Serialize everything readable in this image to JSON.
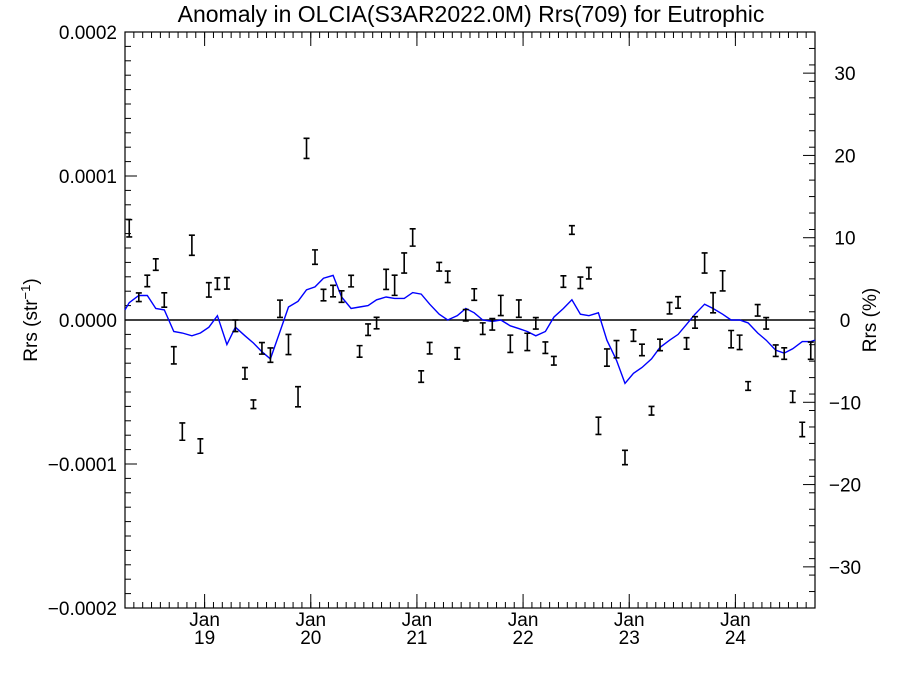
{
  "chart_data": {
    "type": "scatter",
    "title": "Anomaly in OLCIA(S3AR2022.0M) Rrs(709) for Eutrophic",
    "ylabel": "Rrs (str⁻¹)",
    "y2label": "Rrs (%)",
    "xlabel": "",
    "xlim": [
      2018.25,
      2024.75
    ],
    "ylim": [
      -0.0002,
      0.0002
    ],
    "y2lim": [
      -35,
      35
    ],
    "y_ticks": [
      {
        "value": 0.0002,
        "label": "0.0002"
      },
      {
        "value": 0.0001,
        "label": "0.0001"
      },
      {
        "value": 0.0,
        "label": "0.0000"
      },
      {
        "value": -0.0001,
        "label": "−0.0001"
      },
      {
        "value": -0.0002,
        "label": "−0.0002"
      }
    ],
    "y2_ticks": [
      {
        "value": 30,
        "label": "30"
      },
      {
        "value": 20,
        "label": "20"
      },
      {
        "value": 10,
        "label": "10"
      },
      {
        "value": 0,
        "label": "0"
      },
      {
        "value": -10,
        "label": "−10"
      },
      {
        "value": -20,
        "label": "−20"
      },
      {
        "value": -30,
        "label": "−30"
      }
    ],
    "x_ticks": [
      {
        "value": 2019.0,
        "month": "Jan",
        "year": "19"
      },
      {
        "value": 2020.0,
        "month": "Jan",
        "year": "20"
      },
      {
        "value": 2021.0,
        "month": "Jan",
        "year": "21"
      },
      {
        "value": 2022.0,
        "month": "Jan",
        "year": "22"
      },
      {
        "value": 2023.0,
        "month": "Jan",
        "year": "23"
      },
      {
        "value": 2024.0,
        "month": "Jan",
        "year": "24"
      }
    ],
    "grid": false,
    "reference_line": 0,
    "series": [
      {
        "kind": "errorbar",
        "color": "#000000",
        "points": [
          {
            "x": 2018.29,
            "y": 6.37e-05,
            "err": 6e-06
          },
          {
            "x": 2018.38,
            "y": 1.58e-05,
            "err": 3e-06
          },
          {
            "x": 2018.46,
            "y": 2.71e-05,
            "err": 4e-06
          },
          {
            "x": 2018.54,
            "y": 3.85e-05,
            "err": 4e-06
          },
          {
            "x": 2018.62,
            "y": 1.39e-05,
            "err": 5e-06
          },
          {
            "x": 2018.71,
            "y": -2.45e-05,
            "err": 6e-06
          },
          {
            "x": 2018.79,
            "y": -7.75e-05,
            "err": 6e-06
          },
          {
            "x": 2018.88,
            "y": 5.19e-05,
            "err": 7e-06
          },
          {
            "x": 2018.96,
            "y": -8.75e-05,
            "err": 5e-06
          },
          {
            "x": 2019.04,
            "y": 2.09e-05,
            "err": 5e-06
          },
          {
            "x": 2019.12,
            "y": 2.52e-05,
            "err": 4e-06
          },
          {
            "x": 2019.21,
            "y": 2.55e-05,
            "err": 4e-06
          },
          {
            "x": 2019.29,
            "y": -4e-06,
            "err": 4e-06
          },
          {
            "x": 2019.38,
            "y": -3.7e-05,
            "err": 4e-06
          },
          {
            "x": 2019.46,
            "y": -5.85e-05,
            "err": 3e-06
          },
          {
            "x": 2019.54,
            "y": -1.97e-05,
            "err": 4e-06
          },
          {
            "x": 2019.62,
            "y": -2.44e-05,
            "err": 5e-06
          },
          {
            "x": 2019.71,
            "y": 7.8e-06,
            "err": 6e-06
          },
          {
            "x": 2019.79,
            "y": -1.7e-05,
            "err": 7e-06
          },
          {
            "x": 2019.88,
            "y": -5.33e-05,
            "err": 7e-06
          },
          {
            "x": 2019.96,
            "y": 0.0001192,
            "err": 7e-06
          },
          {
            "x": 2020.04,
            "y": 4.37e-05,
            "err": 5e-06
          },
          {
            "x": 2020.12,
            "y": 1.73e-05,
            "err": 4e-06
          },
          {
            "x": 2020.21,
            "y": 2.01e-05,
            "err": 4e-06
          },
          {
            "x": 2020.29,
            "y": 1.63e-05,
            "err": 4e-06
          },
          {
            "x": 2020.38,
            "y": 2.7e-05,
            "err": 4e-06
          },
          {
            "x": 2020.46,
            "y": -2.18e-05,
            "err": 4e-06
          },
          {
            "x": 2020.54,
            "y": -6.7e-06,
            "err": 4e-06
          },
          {
            "x": 2020.62,
            "y": -2.1e-06,
            "err": 4e-06
          },
          {
            "x": 2020.71,
            "y": 2.82e-05,
            "err": 7e-06
          },
          {
            "x": 2020.79,
            "y": 2.41e-05,
            "err": 7e-06
          },
          {
            "x": 2020.88,
            "y": 3.96e-05,
            "err": 7e-06
          },
          {
            "x": 2020.96,
            "y": 5.73e-05,
            "err": 6e-06
          },
          {
            "x": 2021.04,
            "y": -3.93e-05,
            "err": 4e-06
          },
          {
            "x": 2021.12,
            "y": -1.96e-05,
            "err": 4e-06
          },
          {
            "x": 2021.21,
            "y": 3.7e-05,
            "err": 3e-06
          },
          {
            "x": 2021.29,
            "y": 3e-05,
            "err": 4e-06
          },
          {
            "x": 2021.38,
            "y": -2.32e-05,
            "err": 4e-06
          },
          {
            "x": 2021.46,
            "y": 3.3e-06,
            "err": 4e-06
          },
          {
            "x": 2021.54,
            "y": 1.77e-05,
            "err": 4e-06
          },
          {
            "x": 2021.62,
            "y": -6e-06,
            "err": 4e-06
          },
          {
            "x": 2021.71,
            "y": -3e-06,
            "err": 4e-06
          },
          {
            "x": 2021.79,
            "y": 1.01e-05,
            "err": 7e-06
          },
          {
            "x": 2021.88,
            "y": -1.65e-05,
            "err": 6e-06
          },
          {
            "x": 2021.96,
            "y": 7.9e-06,
            "err": 6e-06
          },
          {
            "x": 2022.04,
            "y": -1.52e-05,
            "err": 6e-06
          },
          {
            "x": 2022.12,
            "y": -2.3e-06,
            "err": 4e-06
          },
          {
            "x": 2022.21,
            "y": -1.92e-05,
            "err": 4e-06
          },
          {
            "x": 2022.29,
            "y": -2.83e-05,
            "err": 3e-06
          },
          {
            "x": 2022.38,
            "y": 2.67e-05,
            "err": 4e-06
          },
          {
            "x": 2022.46,
            "y": 6.25e-05,
            "err": 3e-06
          },
          {
            "x": 2022.54,
            "y": 2.58e-05,
            "err": 4e-06
          },
          {
            "x": 2022.62,
            "y": 3.25e-05,
            "err": 4e-06
          },
          {
            "x": 2022.71,
            "y": -7.35e-05,
            "err": 6e-06
          },
          {
            "x": 2022.79,
            "y": -2.61e-05,
            "err": 6e-06
          },
          {
            "x": 2022.88,
            "y": -2.03e-05,
            "err": 6e-06
          },
          {
            "x": 2022.96,
            "y": -9.55e-05,
            "err": 5e-06
          },
          {
            "x": 2023.04,
            "y": -1.08e-05,
            "err": 4e-06
          },
          {
            "x": 2023.12,
            "y": -2.08e-05,
            "err": 4e-06
          },
          {
            "x": 2023.21,
            "y": -6.3e-05,
            "err": 3e-06
          },
          {
            "x": 2023.29,
            "y": -1.73e-05,
            "err": 4e-06
          },
          {
            "x": 2023.38,
            "y": 8.2e-06,
            "err": 4e-06
          },
          {
            "x": 2023.46,
            "y": 1.22e-05,
            "err": 4e-06
          },
          {
            "x": 2023.54,
            "y": -1.63e-05,
            "err": 4e-06
          },
          {
            "x": 2023.62,
            "y": -1.7e-06,
            "err": 4e-06
          },
          {
            "x": 2023.71,
            "y": 3.96e-05,
            "err": 7e-06
          },
          {
            "x": 2023.79,
            "y": 1.2e-05,
            "err": 7e-06
          },
          {
            "x": 2023.88,
            "y": 2.72e-05,
            "err": 7e-06
          },
          {
            "x": 2023.96,
            "y": -1.33e-05,
            "err": 6e-06
          },
          {
            "x": 2024.04,
            "y": -1.55e-05,
            "err": 5e-06
          },
          {
            "x": 2024.12,
            "y": -4.58e-05,
            "err": 3e-06
          },
          {
            "x": 2024.21,
            "y": 6.7e-06,
            "err": 4e-06
          },
          {
            "x": 2024.29,
            "y": -2.3e-06,
            "err": 4e-06
          },
          {
            "x": 2024.38,
            "y": -2.13e-05,
            "err": 4e-06
          },
          {
            "x": 2024.46,
            "y": -2.33e-05,
            "err": 4e-06
          },
          {
            "x": 2024.54,
            "y": -5.33e-05,
            "err": 4e-06
          },
          {
            "x": 2024.63,
            "y": -7.6e-05,
            "err": 5e-06
          },
          {
            "x": 2024.71,
            "y": -2.13e-05,
            "err": 6e-06
          }
        ]
      },
      {
        "kind": "line",
        "color": "#0000ff",
        "points": [
          [
            2018.25,
            7e-06
          ],
          [
            2018.29,
            1.2e-05
          ],
          [
            2018.38,
            1.7e-05
          ],
          [
            2018.46,
            1.7e-05
          ],
          [
            2018.54,
            8e-06
          ],
          [
            2018.62,
            7e-06
          ],
          [
            2018.71,
            -8e-06
          ],
          [
            2018.79,
            -9e-06
          ],
          [
            2018.88,
            -1.1e-05
          ],
          [
            2018.96,
            -9e-06
          ],
          [
            2019.04,
            -5e-06
          ],
          [
            2019.12,
            3e-06
          ],
          [
            2019.21,
            -1.7e-05
          ],
          [
            2019.29,
            -5e-06
          ],
          [
            2019.38,
            -1.1e-05
          ],
          [
            2019.46,
            -1.6e-05
          ],
          [
            2019.54,
            -2.2e-05
          ],
          [
            2019.62,
            -2.7e-05
          ],
          [
            2019.71,
            -8e-06
          ],
          [
            2019.79,
            9e-06
          ],
          [
            2019.88,
            1.3e-05
          ],
          [
            2019.96,
            2.1e-05
          ],
          [
            2020.04,
            2.3e-05
          ],
          [
            2020.12,
            2.9e-05
          ],
          [
            2020.21,
            3.1e-05
          ],
          [
            2020.29,
            1.6e-05
          ],
          [
            2020.38,
            8e-06
          ],
          [
            2020.46,
            9e-06
          ],
          [
            2020.54,
            1e-05
          ],
          [
            2020.62,
            1.4e-05
          ],
          [
            2020.71,
            1.6e-05
          ],
          [
            2020.79,
            1.5e-05
          ],
          [
            2020.88,
            1.5e-05
          ],
          [
            2020.96,
            1.9e-05
          ],
          [
            2021.04,
            1.8e-05
          ],
          [
            2021.12,
            1.1e-05
          ],
          [
            2021.21,
            4e-06
          ],
          [
            2021.29,
            0.0
          ],
          [
            2021.38,
            3e-06
          ],
          [
            2021.46,
            8e-06
          ],
          [
            2021.54,
            5e-06
          ],
          [
            2021.62,
            0.0
          ],
          [
            2021.71,
            -1e-06
          ],
          [
            2021.79,
            0.0
          ],
          [
            2021.88,
            -4e-06
          ],
          [
            2021.96,
            -6e-06
          ],
          [
            2022.04,
            -8e-06
          ],
          [
            2022.12,
            -1.1e-05
          ],
          [
            2022.21,
            -8e-06
          ],
          [
            2022.29,
            2e-06
          ],
          [
            2022.38,
            8e-06
          ],
          [
            2022.46,
            1.4e-05
          ],
          [
            2022.54,
            4e-06
          ],
          [
            2022.62,
            3e-06
          ],
          [
            2022.71,
            5e-06
          ],
          [
            2022.79,
            -1.4e-05
          ],
          [
            2022.88,
            -2.8e-05
          ],
          [
            2022.96,
            -4.4e-05
          ],
          [
            2023.04,
            -3.7e-05
          ],
          [
            2023.12,
            -3.3e-05
          ],
          [
            2023.21,
            -2.7e-05
          ],
          [
            2023.29,
            -1.9e-05
          ],
          [
            2023.38,
            -1.4e-05
          ],
          [
            2023.46,
            -1e-05
          ],
          [
            2023.54,
            -3e-06
          ],
          [
            2023.62,
            4e-06
          ],
          [
            2023.71,
            1.1e-05
          ],
          [
            2023.79,
            8e-06
          ],
          [
            2023.88,
            4e-06
          ],
          [
            2023.96,
            0.0
          ],
          [
            2024.04,
            0.0
          ],
          [
            2024.12,
            -2e-06
          ],
          [
            2024.21,
            -9e-06
          ],
          [
            2024.29,
            -1.4e-05
          ],
          [
            2024.38,
            -2.1e-05
          ],
          [
            2024.46,
            -2.3e-05
          ],
          [
            2024.54,
            -2e-05
          ],
          [
            2024.63,
            -1.5e-05
          ],
          [
            2024.71,
            -1.5e-05
          ],
          [
            2024.75,
            -1.4e-05
          ]
        ]
      }
    ]
  }
}
